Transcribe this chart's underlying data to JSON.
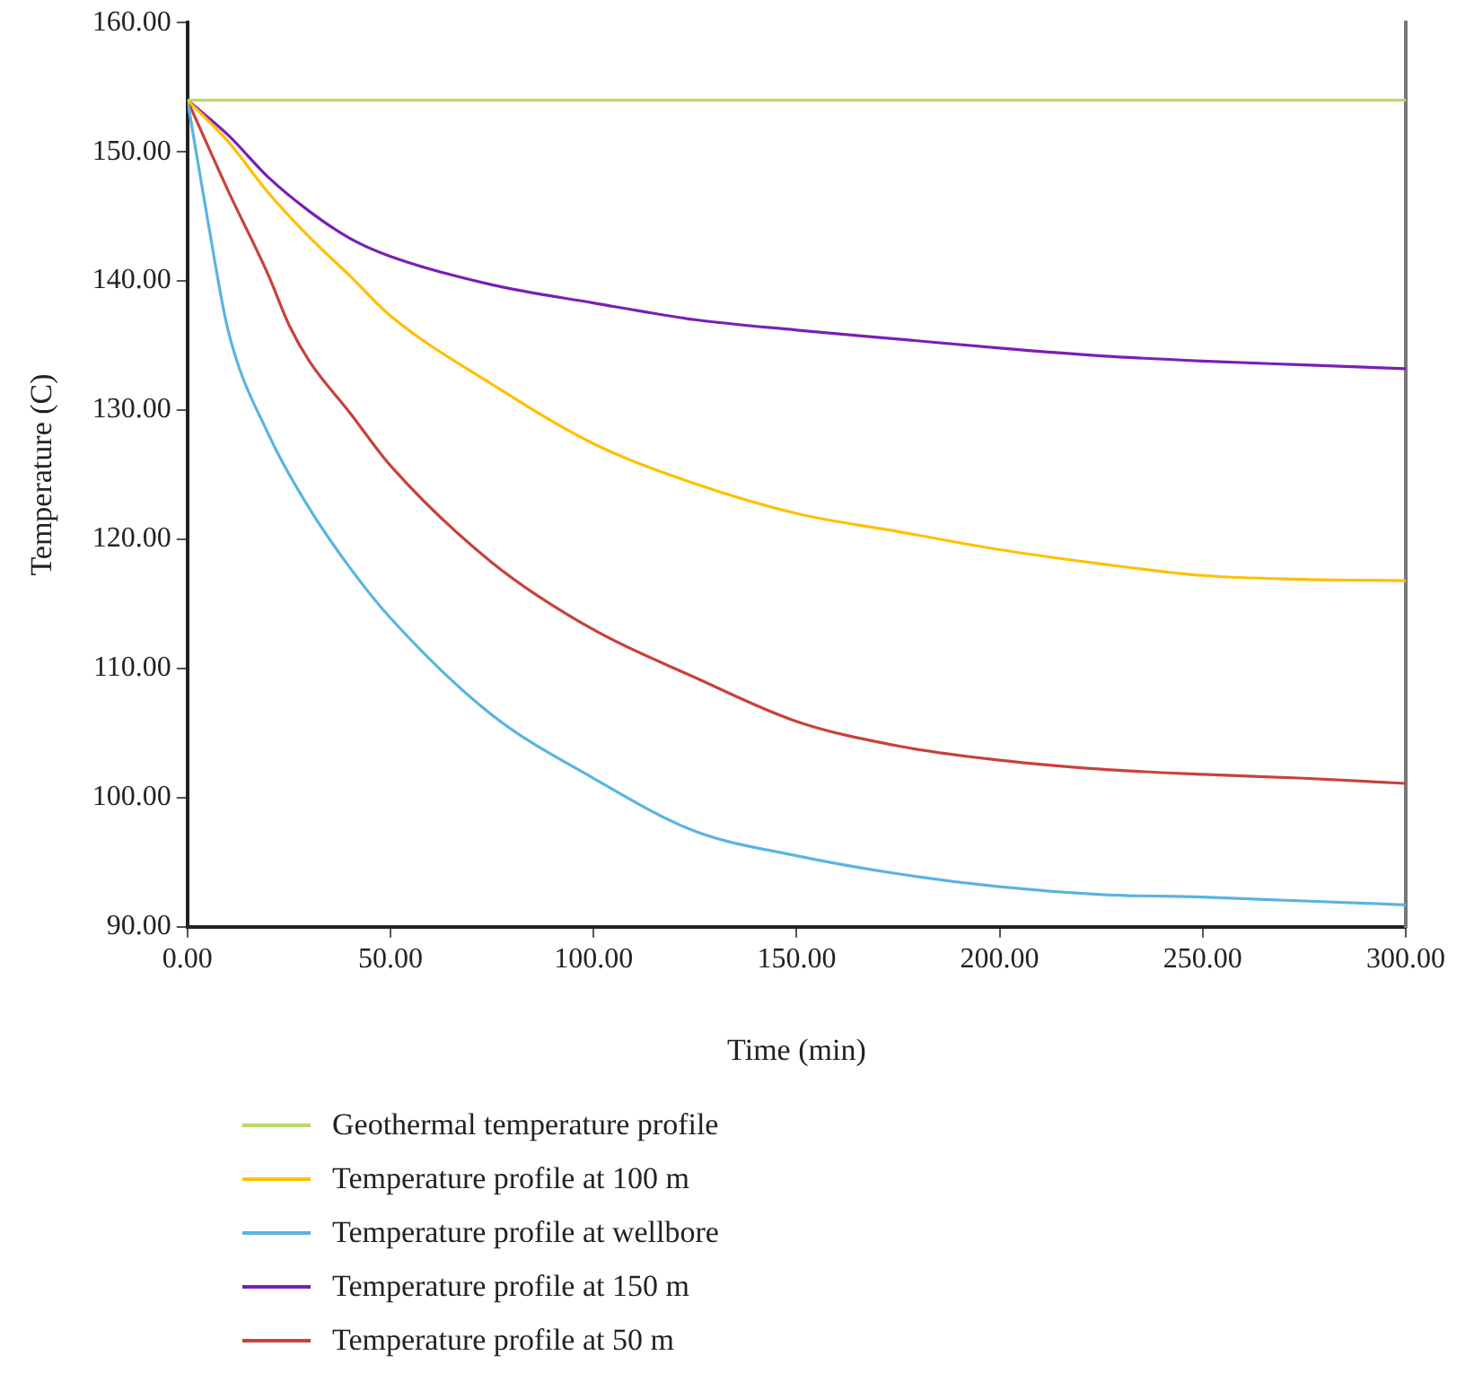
{
  "chart_data": {
    "type": "line",
    "xlabel": "Time (min)",
    "ylabel": "Temperature (C)",
    "xlim": [
      0,
      300
    ],
    "ylim": [
      90,
      160
    ],
    "xticks": [
      {
        "value": 0,
        "label": "0.00"
      },
      {
        "value": 50,
        "label": "50.00"
      },
      {
        "value": 100,
        "label": "100.00"
      },
      {
        "value": 150,
        "label": "150.00"
      },
      {
        "value": 200,
        "label": "200.00"
      },
      {
        "value": 250,
        "label": "250.00"
      },
      {
        "value": 300,
        "label": "300.00"
      }
    ],
    "yticks": [
      {
        "value": 90,
        "label": "90.00"
      },
      {
        "value": 100,
        "label": "100.00"
      },
      {
        "value": 110,
        "label": "110.00"
      },
      {
        "value": 120,
        "label": "120.00"
      },
      {
        "value": 130,
        "label": "130.00"
      },
      {
        "value": 140,
        "label": "140.00"
      },
      {
        "value": 150,
        "label": "150.00"
      },
      {
        "value": 160,
        "label": "160.00"
      }
    ],
    "grid": false,
    "legend": "bottom",
    "marker": "none",
    "line_style": "solid",
    "series": [
      {
        "name": "Geothermal temperature profile",
        "color": "#b8d96a",
        "x": [
          0,
          300
        ],
        "values": [
          154,
          154
        ]
      },
      {
        "name": "Temperature profile at 100 m",
        "color": "#ffc000",
        "x": [
          0,
          10,
          20,
          30,
          40,
          50,
          75,
          100,
          125,
          150,
          175,
          200,
          225,
          250,
          275,
          300
        ],
        "values": [
          154,
          150.8,
          146.8,
          143.4,
          140.4,
          137.3,
          132.0,
          127.4,
          124.3,
          122.0,
          120.6,
          119.2,
          118.1,
          117.2,
          116.9,
          116.8
        ]
      },
      {
        "name": "Temperature profile at wellbore",
        "color": "#5ab4e0",
        "x": [
          0,
          5,
          10,
          20,
          30,
          40,
          50,
          75,
          100,
          125,
          150,
          175,
          200,
          225,
          250,
          275,
          300
        ],
        "values": [
          154,
          144.7,
          136.2,
          128.1,
          122.4,
          117.8,
          113.9,
          106.4,
          101.5,
          97.4,
          95.5,
          94.1,
          93.1,
          92.5,
          92.3,
          92.0,
          91.7
        ]
      },
      {
        "name": "Temperature profile at 150 m",
        "color": "#7a1fb5",
        "x": [
          0,
          10,
          20,
          30,
          40,
          50,
          75,
          100,
          125,
          150,
          175,
          200,
          225,
          250,
          275,
          300
        ],
        "values": [
          154,
          151.3,
          148.0,
          145.4,
          143.3,
          141.9,
          139.7,
          138.3,
          137.0,
          136.2,
          135.5,
          134.8,
          134.2,
          133.8,
          133.5,
          133.2
        ]
      },
      {
        "name": "Temperature profile at 50 m",
        "color": "#c8413c",
        "x": [
          0,
          10,
          20,
          25,
          30,
          40,
          50,
          75,
          100,
          125,
          150,
          175,
          200,
          225,
          250,
          275,
          300
        ],
        "values": [
          154,
          147.0,
          140.4,
          136.6,
          133.8,
          129.8,
          125.7,
          118.2,
          113.0,
          109.3,
          105.9,
          104.0,
          102.9,
          102.2,
          101.8,
          101.5,
          101.1
        ]
      }
    ]
  }
}
